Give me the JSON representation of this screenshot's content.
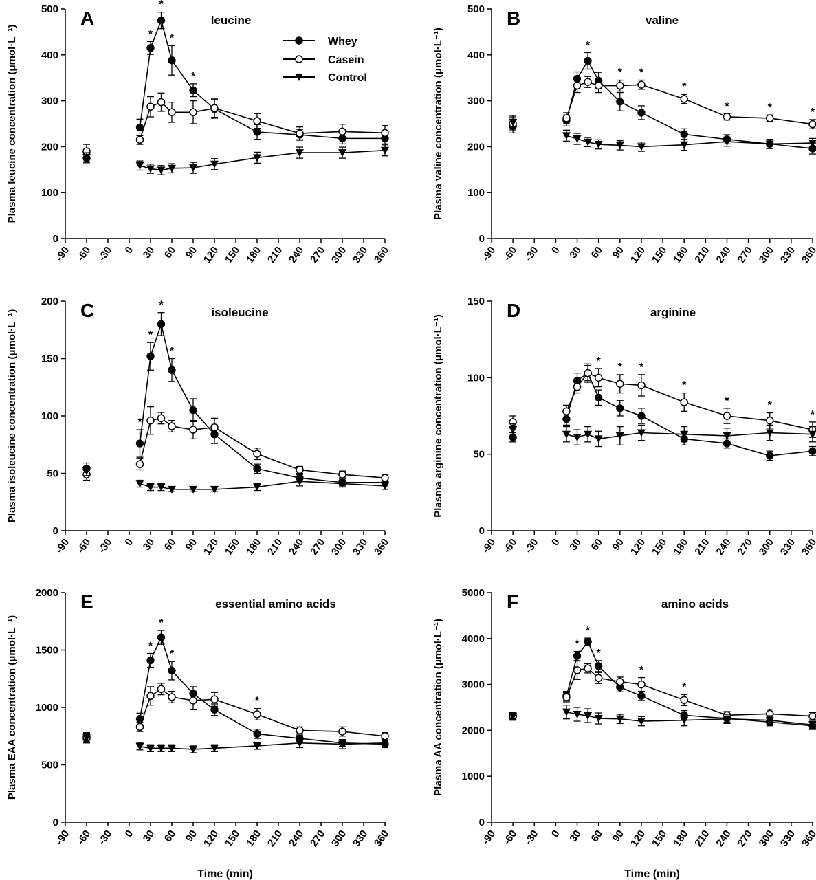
{
  "chart_data": [
    {
      "type": "line",
      "panel": "A",
      "title": "leucine",
      "ylabel": "Plasma leucine concentration (μmol·L⁻¹)",
      "xlabel": "",
      "ylim": [
        0,
        500
      ],
      "yticks": [
        0,
        100,
        200,
        300,
        400,
        500
      ],
      "xlim": [
        -90,
        360
      ],
      "xticks": [
        -90,
        -60,
        -30,
        0,
        30,
        60,
        90,
        120,
        150,
        180,
        210,
        240,
        270,
        300,
        330,
        360
      ],
      "series": [
        {
          "name": "Whey",
          "marker": "filled-circle",
          "x": [
            -60,
            15,
            30,
            45,
            60,
            90,
            120,
            180,
            240,
            300,
            360
          ],
          "y": [
            175,
            242,
            415,
            475,
            388,
            323,
            282,
            232,
            226,
            218,
            218
          ],
          "err": [
            10,
            18,
            14,
            18,
            32,
            14,
            20,
            16,
            12,
            12,
            12
          ]
        },
        {
          "name": "Casein",
          "marker": "open-circle",
          "x": [
            -60,
            15,
            30,
            45,
            60,
            90,
            120,
            180,
            240,
            300,
            360
          ],
          "y": [
            190,
            215,
            287,
            297,
            275,
            275,
            284,
            256,
            229,
            233,
            230
          ],
          "err": [
            15,
            10,
            22,
            20,
            22,
            25,
            20,
            16,
            14,
            16,
            16
          ]
        },
        {
          "name": "Control",
          "marker": "filled-triangle-down",
          "x": [
            -60,
            15,
            30,
            45,
            60,
            90,
            120,
            180,
            240,
            300,
            360
          ],
          "y": [
            177,
            159,
            152,
            149,
            153,
            154,
            162,
            176,
            187,
            187,
            192
          ],
          "err": [
            10,
            10,
            10,
            10,
            10,
            12,
            12,
            12,
            12,
            12,
            12
          ]
        }
      ],
      "significance_x": [
        30,
        45,
        60,
        90
      ]
    },
    {
      "type": "line",
      "panel": "B",
      "title": "valine",
      "ylabel": "Plasma valine concentration (μmol·L⁻¹)",
      "xlabel": "",
      "ylim": [
        0,
        500
      ],
      "yticks": [
        0,
        100,
        200,
        300,
        400,
        500
      ],
      "xlim": [
        -90,
        360
      ],
      "xticks": [
        -90,
        -60,
        -30,
        0,
        30,
        60,
        90,
        120,
        150,
        180,
        210,
        240,
        270,
        300,
        330,
        360
      ],
      "series": [
        {
          "name": "Whey",
          "marker": "filled-circle",
          "x": [
            -60,
            15,
            30,
            45,
            60,
            90,
            120,
            180,
            240,
            300,
            360
          ],
          "y": [
            245,
            257,
            348,
            387,
            344,
            298,
            274,
            227,
            216,
            206,
            196
          ],
          "err": [
            15,
            12,
            15,
            18,
            18,
            20,
            15,
            12,
            10,
            10,
            12
          ]
        },
        {
          "name": "Casein",
          "marker": "open-circle",
          "x": [
            -60,
            15,
            30,
            45,
            60,
            90,
            120,
            180,
            240,
            300,
            360
          ],
          "y": [
            250,
            262,
            333,
            341,
            333,
            333,
            335,
            304,
            265,
            262,
            249
          ],
          "err": [
            15,
            12,
            15,
            12,
            15,
            12,
            10,
            10,
            7,
            7,
            10
          ]
        },
        {
          "name": "Control",
          "marker": "filled-triangle-down",
          "x": [
            -60,
            15,
            30,
            45,
            60,
            90,
            120,
            180,
            240,
            300,
            360
          ],
          "y": [
            253,
            224,
            217,
            210,
            205,
            203,
            200,
            204,
            211,
            206,
            208
          ],
          "err": [
            15,
            12,
            12,
            10,
            10,
            10,
            10,
            12,
            10,
            10,
            10
          ]
        }
      ],
      "significance_x": [
        45,
        90,
        120,
        180,
        240,
        300,
        360
      ]
    },
    {
      "type": "line",
      "panel": "C",
      "title": "isoleucine",
      "ylabel": "Plasma isoleucine concentration (μmol·L⁻¹)",
      "xlabel": "",
      "ylim": [
        0,
        200
      ],
      "yticks": [
        0,
        50,
        100,
        150,
        200
      ],
      "xlim": [
        -90,
        360
      ],
      "xticks": [
        -90,
        -60,
        -30,
        0,
        30,
        60,
        90,
        120,
        150,
        180,
        210,
        240,
        270,
        300,
        330,
        360
      ],
      "series": [
        {
          "name": "Whey",
          "marker": "filled-circle",
          "x": [
            -60,
            15,
            30,
            45,
            60,
            90,
            120,
            180,
            240,
            300,
            360
          ],
          "y": [
            54,
            76,
            152,
            180,
            140,
            105,
            84,
            54,
            46,
            42,
            42
          ],
          "err": [
            5,
            12,
            12,
            10,
            10,
            10,
            8,
            4,
            3,
            3,
            3
          ]
        },
        {
          "name": "Casein",
          "marker": "open-circle",
          "x": [
            -60,
            15,
            30,
            45,
            60,
            90,
            120,
            180,
            240,
            300,
            360
          ],
          "y": [
            49,
            58,
            96,
            98,
            91,
            88,
            90,
            67,
            53,
            49,
            46
          ],
          "err": [
            5,
            5,
            12,
            5,
            5,
            8,
            8,
            5,
            3,
            3,
            3
          ]
        },
        {
          "name": "Control",
          "marker": "filled-triangle-down",
          "x": [
            -60,
            15,
            30,
            45,
            60,
            90,
            120,
            180,
            240,
            300,
            360
          ],
          "y": [
            52,
            41,
            38,
            38,
            36,
            36,
            36,
            38,
            43,
            41,
            39
          ],
          "err": [
            4,
            3,
            3,
            3,
            2,
            2,
            2,
            3,
            4,
            3,
            3
          ]
        }
      ],
      "significance_x": [
        15,
        30,
        45,
        60
      ]
    },
    {
      "type": "line",
      "panel": "D",
      "title": "arginine",
      "ylabel": "Plasma arginine concentration (μmol·L⁻¹)",
      "xlabel": "",
      "ylim": [
        0,
        150
      ],
      "yticks": [
        0,
        50,
        100,
        150
      ],
      "xlim": [
        -90,
        360
      ],
      "xticks": [
        -90,
        -60,
        -30,
        0,
        30,
        60,
        90,
        120,
        150,
        180,
        210,
        240,
        270,
        300,
        330,
        360
      ],
      "series": [
        {
          "name": "Whey",
          "marker": "filled-circle",
          "x": [
            -60,
            15,
            30,
            45,
            60,
            90,
            120,
            180,
            240,
            300,
            360
          ],
          "y": [
            61,
            73,
            98,
            103,
            87,
            80,
            75,
            60,
            57,
            49,
            52
          ],
          "err": [
            3,
            4,
            5,
            5,
            5,
            5,
            5,
            4,
            3,
            3,
            3
          ]
        },
        {
          "name": "Casein",
          "marker": "open-circle",
          "x": [
            -60,
            15,
            30,
            45,
            60,
            90,
            120,
            180,
            240,
            300,
            360
          ],
          "y": [
            71,
            78,
            94,
            103,
            100,
            96,
            95,
            84,
            75,
            72,
            66
          ],
          "err": [
            4,
            4,
            4,
            6,
            6,
            6,
            7,
            6,
            5,
            5,
            5
          ]
        },
        {
          "name": "Control",
          "marker": "filled-triangle-down",
          "x": [
            -60,
            15,
            30,
            45,
            60,
            90,
            120,
            180,
            240,
            300,
            360
          ],
          "y": [
            66,
            63,
            61,
            63,
            60,
            62,
            64,
            63,
            62,
            64,
            63
          ],
          "err": [
            4,
            5,
            5,
            5,
            5,
            6,
            5,
            5,
            5,
            5,
            5
          ]
        }
      ],
      "significance_x": [
        60,
        90,
        120,
        180,
        240,
        300,
        360
      ]
    },
    {
      "type": "line",
      "panel": "E",
      "title": "essential amino acids",
      "ylabel": "Plasma EAA concentration (μmol·L⁻¹)",
      "xlabel": "Time (min)",
      "ylim": [
        0,
        2000
      ],
      "yticks": [
        0,
        500,
        1000,
        1500,
        2000
      ],
      "xlim": [
        -90,
        360
      ],
      "xticks": [
        -90,
        -60,
        -30,
        0,
        30,
        60,
        90,
        120,
        150,
        180,
        210,
        240,
        270,
        300,
        330,
        360
      ],
      "series": [
        {
          "name": "Whey",
          "marker": "filled-circle",
          "x": [
            -60,
            15,
            30,
            45,
            60,
            90,
            120,
            180,
            240,
            300,
            360
          ],
          "y": [
            730,
            900,
            1410,
            1610,
            1320,
            1120,
            980,
            770,
            730,
            690,
            680
          ],
          "err": [
            40,
            50,
            60,
            60,
            80,
            60,
            50,
            40,
            30,
            30,
            30
          ]
        },
        {
          "name": "Casein",
          "marker": "open-circle",
          "x": [
            -60,
            15,
            30,
            45,
            60,
            90,
            120,
            180,
            240,
            300,
            360
          ],
          "y": [
            740,
            830,
            1100,
            1160,
            1090,
            1060,
            1070,
            940,
            800,
            790,
            750
          ],
          "err": [
            40,
            40,
            80,
            50,
            50,
            80,
            60,
            50,
            30,
            40,
            30
          ]
        },
        {
          "name": "Control",
          "marker": "filled-triangle-down",
          "x": [
            -60,
            15,
            30,
            45,
            60,
            90,
            120,
            180,
            240,
            300,
            360
          ],
          "y": [
            735,
            660,
            645,
            645,
            645,
            635,
            645,
            665,
            690,
            680,
            690
          ],
          "err": [
            40,
            30,
            30,
            30,
            30,
            30,
            30,
            30,
            40,
            40,
            30
          ]
        }
      ],
      "significance_x": [
        30,
        45,
        60,
        180
      ]
    },
    {
      "type": "line",
      "panel": "F",
      "title": "amino acids",
      "ylabel": "Plasma AA concentration (μmol·L⁻¹)",
      "xlabel": "Time (min)",
      "ylim": [
        0,
        5000
      ],
      "yticks": [
        0,
        1000,
        2000,
        3000,
        4000,
        5000
      ],
      "xlim": [
        -90,
        360
      ],
      "xticks": [
        -90,
        -60,
        -30,
        0,
        30,
        60,
        90,
        120,
        150,
        180,
        210,
        240,
        270,
        300,
        330,
        360
      ],
      "series": [
        {
          "name": "Whey",
          "marker": "filled-circle",
          "x": [
            -60,
            15,
            30,
            45,
            60,
            90,
            120,
            180,
            240,
            300,
            360
          ],
          "y": [
            2300,
            2750,
            3620,
            3930,
            3400,
            2940,
            2750,
            2330,
            2260,
            2180,
            2100
          ],
          "err": [
            80,
            100,
            100,
            80,
            120,
            100,
            100,
            100,
            80,
            80,
            80
          ]
        },
        {
          "name": "Casein",
          "marker": "open-circle",
          "x": [
            -60,
            15,
            30,
            45,
            60,
            90,
            120,
            180,
            240,
            300,
            360
          ],
          "y": [
            2320,
            2720,
            3310,
            3350,
            3140,
            3060,
            3000,
            2660,
            2330,
            2360,
            2310
          ],
          "err": [
            80,
            100,
            200,
            100,
            120,
            100,
            150,
            120,
            80,
            100,
            80
          ]
        },
        {
          "name": "Control",
          "marker": "filled-triangle-down",
          "x": [
            -60,
            15,
            30,
            45,
            60,
            90,
            120,
            180,
            240,
            300,
            360
          ],
          "y": [
            2310,
            2400,
            2350,
            2320,
            2260,
            2250,
            2200,
            2220,
            2250,
            2220,
            2120
          ],
          "err": [
            80,
            150,
            150,
            150,
            120,
            100,
            100,
            120,
            100,
            100,
            80
          ]
        }
      ],
      "significance_x": [
        30,
        45,
        60,
        120,
        180
      ]
    }
  ],
  "legend": {
    "placement": "panel A, top-right",
    "entries": [
      {
        "label": "Whey",
        "marker": "filled-circle"
      },
      {
        "label": "Casein",
        "marker": "open-circle"
      },
      {
        "label": "Control",
        "marker": "filled-triangle-down"
      }
    ]
  },
  "significance_symbol": "*",
  "colors": {
    "ink": "#000000",
    "background": "#ffffff"
  }
}
